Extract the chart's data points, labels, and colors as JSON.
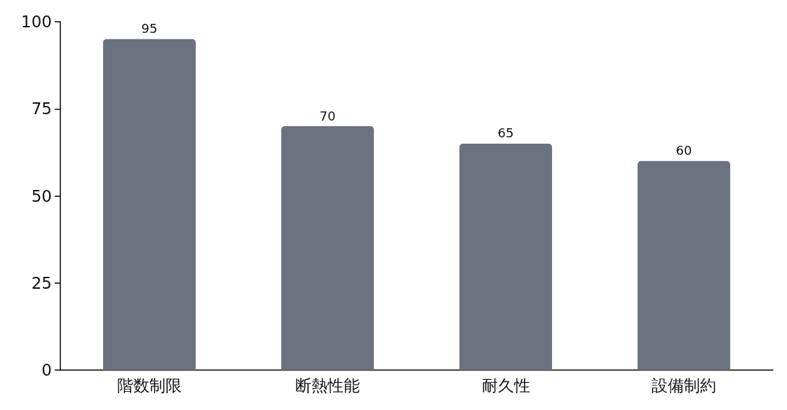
{
  "chart_data": {
    "type": "bar",
    "categories": [
      "階数制限",
      "断熱性能",
      "耐久性",
      "設備制約"
    ],
    "values": [
      95,
      70,
      65,
      60
    ],
    "color": "#6b7280",
    "ylim": [
      0,
      100
    ],
    "yticks": [
      0,
      25,
      50,
      75,
      100
    ],
    "data_labels": true
  }
}
